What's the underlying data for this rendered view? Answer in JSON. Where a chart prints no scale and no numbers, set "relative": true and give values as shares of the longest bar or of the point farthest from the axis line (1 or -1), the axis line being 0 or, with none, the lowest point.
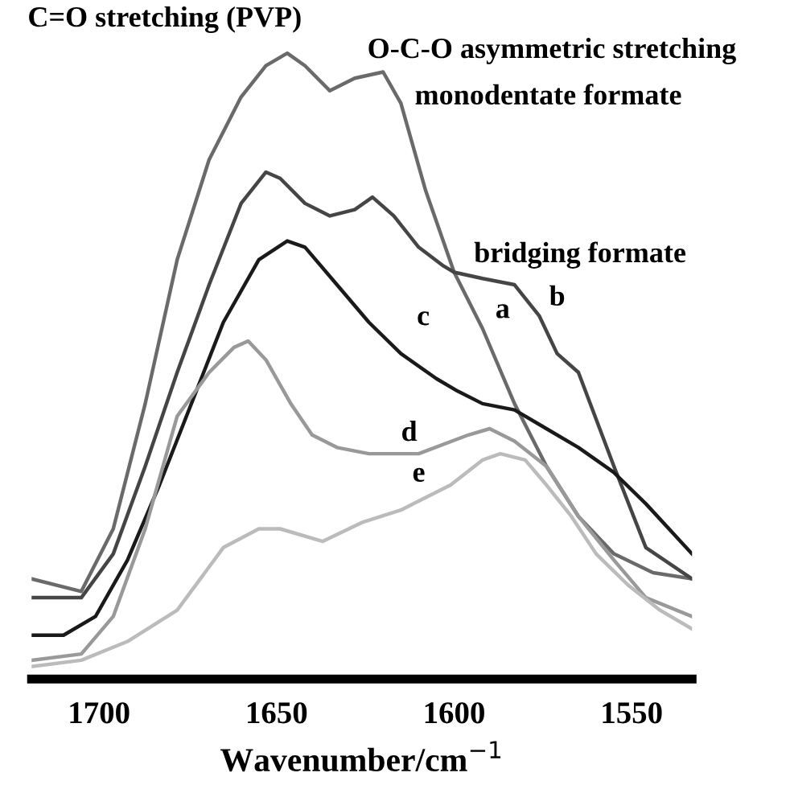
{
  "chart_data": {
    "type": "line",
    "relative": true,
    "xlabel": "Wavenumber/cm$^{−1}$",
    "xlim": [
      1719,
      1533
    ],
    "xticks": [
      1700,
      1650,
      1600,
      1550
    ],
    "grid": false,
    "legend": false,
    "marker": "none",
    "line_style": "solid",
    "series": [
      {
        "name": "a",
        "color": "#6a6a6a",
        "x": [
          1719,
          1705,
          1696,
          1687,
          1678,
          1669,
          1660,
          1653,
          1647,
          1642,
          1635,
          1628,
          1620,
          1615,
          1608,
          1600,
          1592,
          1583,
          1574,
          1565,
          1555,
          1544,
          1533
        ],
        "values": [
          0.16,
          0.14,
          0.24,
          0.44,
          0.67,
          0.83,
          0.93,
          0.98,
          1.0,
          0.98,
          0.94,
          0.96,
          0.97,
          0.92,
          0.78,
          0.65,
          0.56,
          0.44,
          0.34,
          0.26,
          0.2,
          0.17,
          0.16
        ]
      },
      {
        "name": "b",
        "color": "#454545",
        "x": [
          1719,
          1705,
          1696,
          1687,
          1678,
          1669,
          1660,
          1653,
          1649,
          1642,
          1635,
          1628,
          1623,
          1617,
          1610,
          1603,
          1600,
          1592,
          1583,
          1576,
          1571,
          1565,
          1555,
          1546,
          1533
        ],
        "values": [
          0.13,
          0.13,
          0.2,
          0.34,
          0.49,
          0.63,
          0.76,
          0.81,
          0.8,
          0.76,
          0.74,
          0.75,
          0.77,
          0.74,
          0.69,
          0.66,
          0.65,
          0.64,
          0.63,
          0.58,
          0.52,
          0.49,
          0.34,
          0.21,
          0.16
        ]
      },
      {
        "name": "c",
        "color": "#1a1a1a",
        "x": [
          1719,
          1710,
          1701,
          1692,
          1683,
          1674,
          1665,
          1655,
          1647,
          1642,
          1633,
          1624,
          1615,
          1605,
          1599,
          1592,
          1583,
          1574,
          1565,
          1555,
          1546,
          1533
        ],
        "values": [
          0.07,
          0.07,
          0.1,
          0.19,
          0.31,
          0.44,
          0.57,
          0.67,
          0.7,
          0.69,
          0.63,
          0.57,
          0.52,
          0.48,
          0.46,
          0.44,
          0.43,
          0.4,
          0.37,
          0.33,
          0.28,
          0.2
        ]
      },
      {
        "name": "d",
        "color": "#999999",
        "x": [
          1719,
          1705,
          1696,
          1687,
          1678,
          1669,
          1662,
          1658,
          1653,
          1646,
          1640,
          1633,
          1624,
          1610,
          1596,
          1590,
          1583,
          1574,
          1565,
          1555,
          1546,
          1533
        ],
        "values": [
          0.03,
          0.04,
          0.1,
          0.24,
          0.42,
          0.49,
          0.53,
          0.54,
          0.51,
          0.44,
          0.39,
          0.37,
          0.36,
          0.36,
          0.39,
          0.4,
          0.38,
          0.34,
          0.26,
          0.19,
          0.13,
          0.1
        ]
      },
      {
        "name": "e",
        "color": "#bbbbbb",
        "x": [
          1719,
          1705,
          1692,
          1678,
          1665,
          1655,
          1649,
          1637,
          1626,
          1615,
          1601,
          1592,
          1587,
          1580,
          1574,
          1567,
          1560,
          1551,
          1542,
          1533
        ],
        "values": [
          0.02,
          0.03,
          0.06,
          0.11,
          0.21,
          0.24,
          0.24,
          0.22,
          0.25,
          0.27,
          0.31,
          0.35,
          0.36,
          0.35,
          0.31,
          0.26,
          0.2,
          0.15,
          0.11,
          0.08
        ]
      }
    ],
    "annotations": [
      "C=O stretching (PVP)",
      "O-C-O asymmetric stretching",
      "monodentate formate",
      "bridging formate"
    ]
  }
}
